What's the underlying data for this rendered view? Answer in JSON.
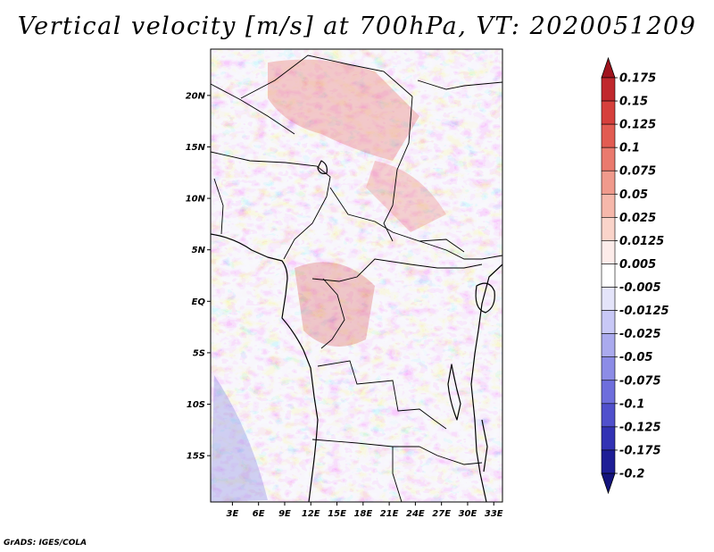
{
  "title": "Vertical velocity [m/s] at 700hPa, VT: 2020051209",
  "footer": "GrADS: IGES/COLA",
  "chart_data": {
    "type": "heatmap",
    "variable": "Vertical velocity",
    "units": "m/s",
    "level": "700hPa",
    "valid_time": "2020051209",
    "lat_labels": [
      "20N",
      "15N",
      "10N",
      "5N",
      "EQ",
      "5S",
      "10S",
      "15S"
    ],
    "lat_values": [
      20,
      15,
      10,
      5,
      0,
      -5,
      -10,
      -15
    ],
    "lon_labels": [
      "3E",
      "6E",
      "9E",
      "12E",
      "15E",
      "18E",
      "21E",
      "24E",
      "27E",
      "30E",
      "33E"
    ],
    "lon_values": [
      3,
      6,
      9,
      12,
      15,
      18,
      21,
      24,
      27,
      30,
      33
    ],
    "lat_range": [
      -19.5,
      24.5
    ],
    "lon_range": [
      0.5,
      34
    ],
    "colorbar": {
      "labels": [
        "0.175",
        "0.15",
        "0.125",
        "0.1",
        "0.075",
        "0.05",
        "0.025",
        "0.0125",
        "0.005",
        "-0.005",
        "-0.0125",
        "-0.025",
        "-0.05",
        "-0.075",
        "-0.1",
        "-0.125",
        "-0.175",
        "-0.2"
      ],
      "colors": [
        "#a0141e",
        "#c0282d",
        "#d6403c",
        "#e25c52",
        "#ea7a6e",
        "#f09a8c",
        "#f6b8ab",
        "#fad4ca",
        "#fdecea",
        "#ffffff",
        "#e4e4fa",
        "#c8c8f6",
        "#aaaaee",
        "#8c8ce6",
        "#6e6edc",
        "#5050cc",
        "#3232b4",
        "#1e1e96",
        "#14147d"
      ]
    }
  }
}
